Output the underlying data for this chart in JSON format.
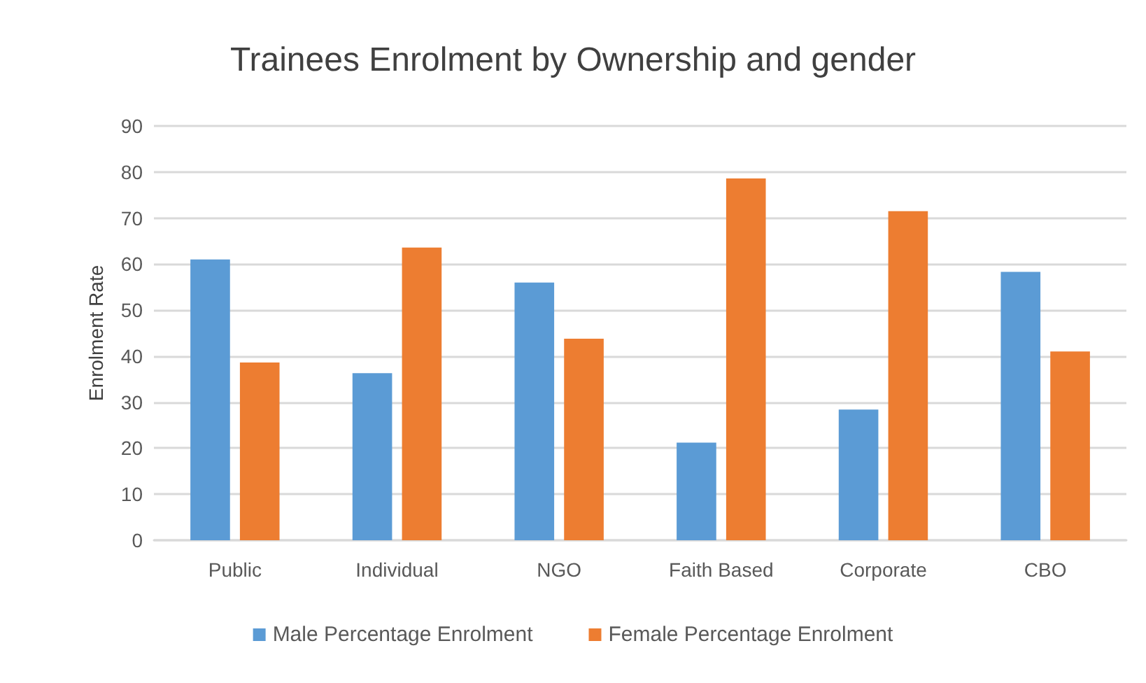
{
  "chart_data": {
    "type": "bar",
    "title": "Trainees Enrolment by Ownership and gender",
    "ylabel": "Enrolment Rate",
    "categories": [
      "Public",
      "Individual",
      "NGO",
      "Faith Based",
      "Corporate",
      "CBO"
    ],
    "series": [
      {
        "name": "Male Percentage Enrolment",
        "color": "#5b9bd5",
        "values": [
          61,
          36.3,
          56,
          21.2,
          28.4,
          58.3
        ]
      },
      {
        "name": "Female Percentage Enrolment",
        "color": "#ed7d31",
        "values": [
          38.6,
          63.6,
          43.8,
          78.6,
          71.5,
          41
        ]
      }
    ],
    "ylim": [
      0,
      90
    ],
    "yticks": [
      0,
      10,
      20,
      30,
      40,
      50,
      60,
      70,
      80,
      90
    ],
    "grid": "y",
    "legend": "bottom"
  }
}
